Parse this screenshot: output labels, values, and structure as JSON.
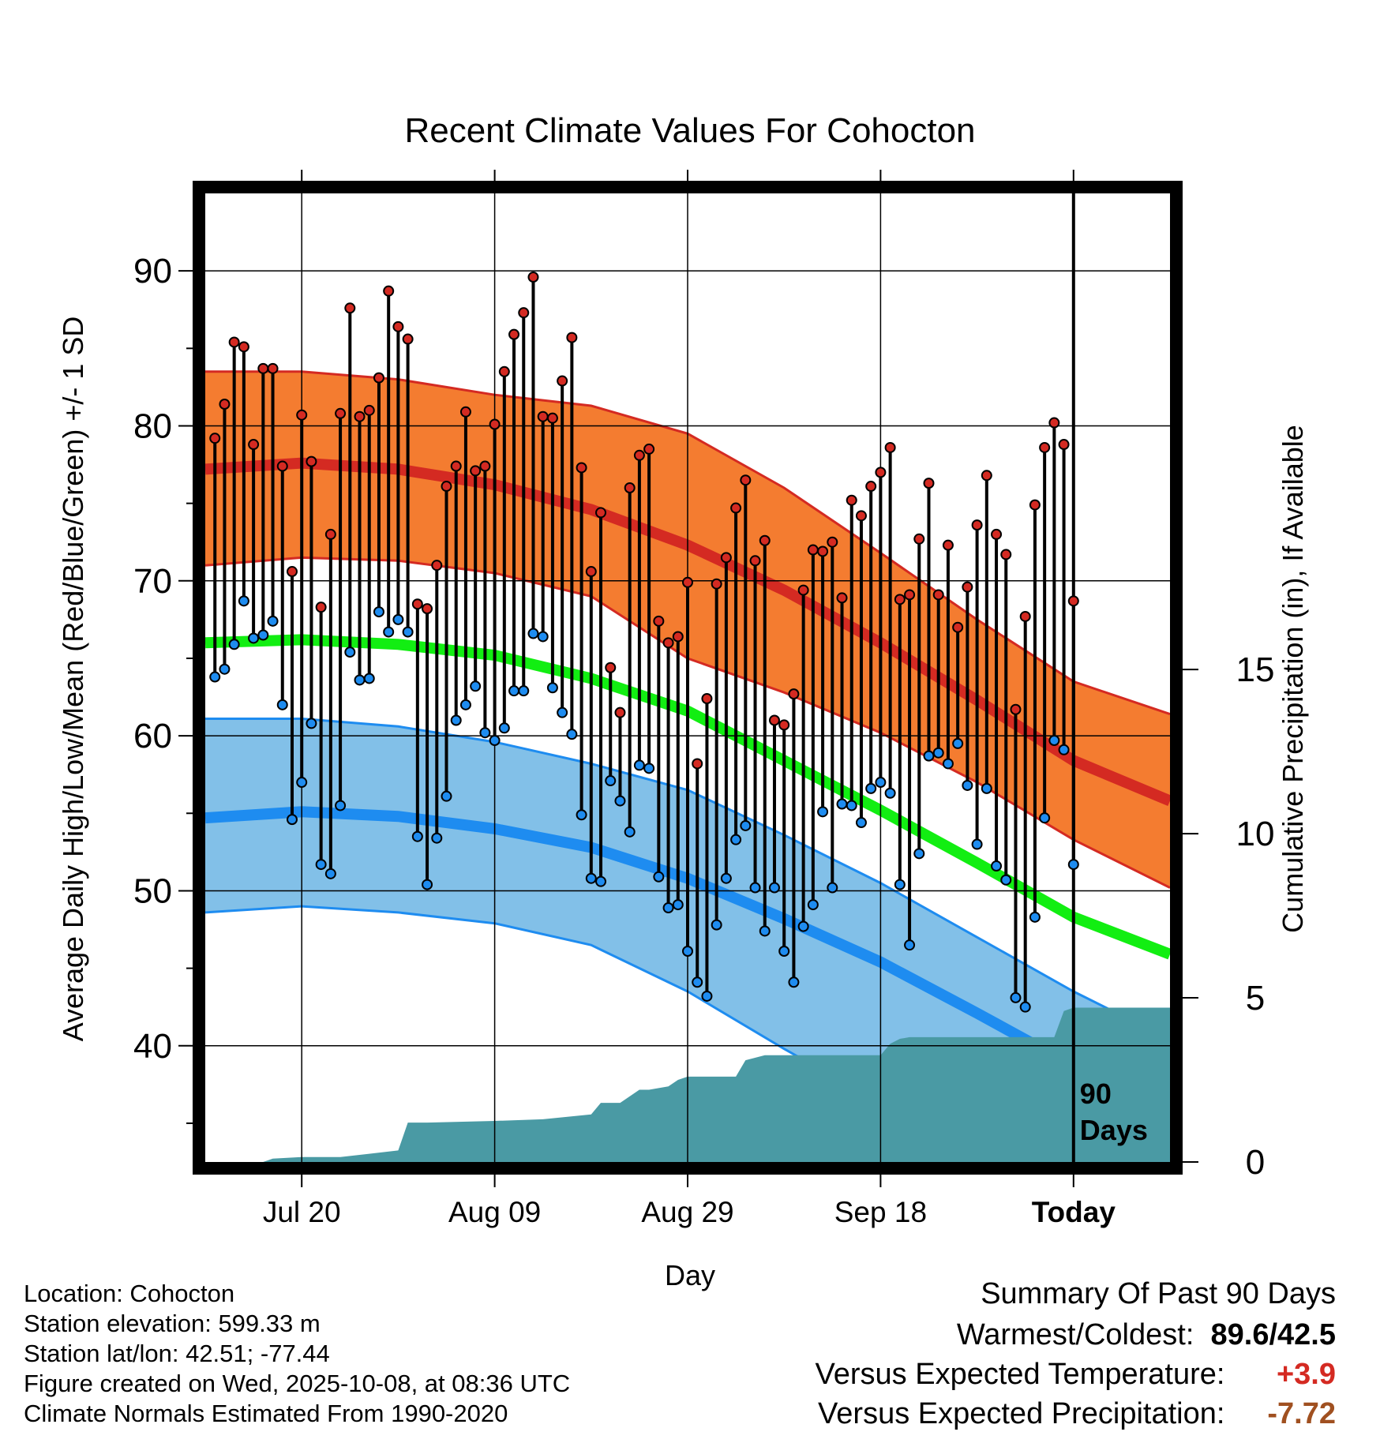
{
  "chart_data": {
    "type": "line",
    "title": "Recent Climate Values For Cohocton",
    "xlabel": "Day",
    "ylabel": "Average Daily High/Low/Mean (Red/Blue/Green) +/- 1 SD",
    "y2label": "Cumulative Precipitation (in), If Available",
    "x_tick_labels": [
      "Jul 20",
      "Aug 09",
      "Aug 29",
      "Sep 18",
      "Today"
    ],
    "x_tick_days": [
      10,
      30,
      50,
      70,
      90
    ],
    "ylim": [
      32.5,
      95
    ],
    "y_ticks": [
      40,
      50,
      60,
      70,
      80,
      90
    ],
    "y2lim": [
      0,
      29.5
    ],
    "y2_ticks": [
      0,
      5,
      10,
      15
    ],
    "xlim": [
      0,
      100
    ],
    "today_day": 90,
    "today_label_1": "90",
    "today_label_2": "Days",
    "colors": {
      "high_band": "#f47c30",
      "high_edge": "#d42a22",
      "high_mean": "#d42a22",
      "low_band": "#82c0e8",
      "low_edge": "#1e8cf0",
      "low_mean": "#1e8cf0",
      "mean_normal": "#12ee12",
      "precip": "#4a9aa4",
      "high_dot": "#d42a22",
      "low_dot": "#1e8cf0"
    },
    "normals_days": [
      0,
      10,
      20,
      30,
      40,
      50,
      60,
      70,
      80,
      90,
      100
    ],
    "normal_high_mean": [
      77.2,
      77.6,
      77.2,
      76.2,
      74.6,
      72.3,
      69.4,
      66.0,
      62.3,
      58.4,
      55.8
    ],
    "normal_high_upper": [
      83.5,
      83.5,
      83.0,
      82.0,
      81.3,
      79.5,
      76.0,
      71.8,
      67.5,
      63.5,
      61.4
    ],
    "normal_high_lower": [
      71.0,
      71.5,
      71.3,
      70.5,
      69.0,
      65.0,
      62.8,
      60.2,
      57.0,
      53.3,
      50.2
    ],
    "normal_mean": [
      66.0,
      66.2,
      65.9,
      65.2,
      63.7,
      61.6,
      58.4,
      55.2,
      51.8,
      48.3,
      45.9
    ],
    "normal_low_mean": [
      54.7,
      55.1,
      54.8,
      54.0,
      52.8,
      50.8,
      48.2,
      45.4,
      42.1,
      38.7,
      36.0
    ],
    "normal_low_upper": [
      61.1,
      61.1,
      60.6,
      59.6,
      58.2,
      56.5,
      53.6,
      50.5,
      47.0,
      43.5,
      40.4
    ],
    "normal_low_lower": [
      48.6,
      49.0,
      48.6,
      47.9,
      46.5,
      43.5,
      39.8,
      36.3,
      32.5,
      32.5,
      32.5
    ],
    "daily_high": [
      79.2,
      81.4,
      85.4,
      85.1,
      78.8,
      83.7,
      83.7,
      77.4,
      70.6,
      80.7,
      77.7,
      68.3,
      73.0,
      80.8,
      87.6,
      80.6,
      81.0,
      83.1,
      88.7,
      86.4,
      85.6,
      68.5,
      68.2,
      71.0,
      76.1,
      77.4,
      80.9,
      77.1,
      77.4,
      80.1,
      83.5,
      85.9,
      87.3,
      89.6,
      80.6,
      80.5,
      82.9,
      85.7,
      77.3,
      70.6,
      74.4,
      64.4,
      61.5,
      76.0,
      78.1,
      78.5,
      67.4,
      66.0,
      66.4,
      69.9,
      58.2,
      62.4,
      69.8,
      71.5,
      74.7,
      76.5,
      71.3,
      72.6,
      61.0,
      60.7,
      62.7,
      69.4,
      72.0,
      71.9,
      72.5,
      68.9,
      75.2,
      74.2,
      76.1,
      77.0,
      78.6,
      68.8,
      69.1,
      72.7,
      76.3,
      69.1,
      72.3,
      67.0,
      69.6,
      73.6,
      76.8,
      73.0,
      71.7,
      61.7,
      67.7,
      74.9,
      78.6,
      80.2,
      78.8,
      68.7
    ],
    "daily_low": [
      63.8,
      64.3,
      65.9,
      68.7,
      66.3,
      66.5,
      67.4,
      62.0,
      54.6,
      57.0,
      60.8,
      51.7,
      51.1,
      55.5,
      65.4,
      63.6,
      63.7,
      68.0,
      66.7,
      67.5,
      66.7,
      53.5,
      50.4,
      53.4,
      56.1,
      61.0,
      62.0,
      63.2,
      60.2,
      59.7,
      60.5,
      62.9,
      62.9,
      66.6,
      66.4,
      63.1,
      61.5,
      60.1,
      54.9,
      50.8,
      50.6,
      57.1,
      55.8,
      53.8,
      58.1,
      57.9,
      50.9,
      48.9,
      49.1,
      46.1,
      44.1,
      43.2,
      47.8,
      50.8,
      53.3,
      54.2,
      50.2,
      47.4,
      50.2,
      46.1,
      44.1,
      47.7,
      49.1,
      55.1,
      50.2,
      55.6,
      55.5,
      54.4,
      56.6,
      57.0,
      56.3,
      50.4,
      46.5,
      52.4,
      58.7,
      58.9,
      58.2,
      59.5,
      56.8,
      53.0,
      56.6,
      51.6,
      50.7,
      43.1,
      42.5,
      48.3,
      54.7,
      59.7,
      59.1,
      51.7
    ],
    "precip_days": [
      0,
      6,
      7,
      10,
      14,
      17,
      20,
      21,
      23,
      30,
      35,
      40,
      41,
      43,
      45,
      46,
      48,
      49,
      50,
      51,
      55,
      56,
      58,
      70,
      71,
      72,
      73,
      75,
      79,
      80,
      88,
      89,
      90,
      100
    ],
    "precip_cum": [
      0,
      0,
      0.1,
      0.15,
      0.15,
      0.25,
      0.35,
      1.2,
      1.2,
      1.25,
      1.3,
      1.45,
      1.8,
      1.8,
      2.2,
      2.2,
      2.3,
      2.5,
      2.6,
      2.6,
      2.6,
      3.1,
      3.25,
      3.25,
      3.6,
      3.75,
      3.8,
      3.8,
      3.8,
      3.8,
      3.8,
      4.6,
      4.7,
      4.7
    ]
  },
  "info": {
    "location": "Location: Cohocton",
    "elevation": "Station elevation: 599.33 m",
    "latlon": "Station lat/lon: 42.51; -77.44",
    "created": "Figure created on Wed, 2025-10-08, at 08:36 UTC",
    "normals": "Climate Normals Estimated From 1990-2020"
  },
  "summary": {
    "title": "Summary Of Past 90 Days",
    "warm_label": "Warmest/Coldest:",
    "warm_value": "89.6/42.5",
    "temp_label": "Versus Expected Temperature:",
    "temp_value": "+3.9",
    "temp_color": "#d42a22",
    "precip_label": "Versus Expected Precipitation:",
    "precip_value": "-7.72",
    "precip_color": "#a05020"
  }
}
